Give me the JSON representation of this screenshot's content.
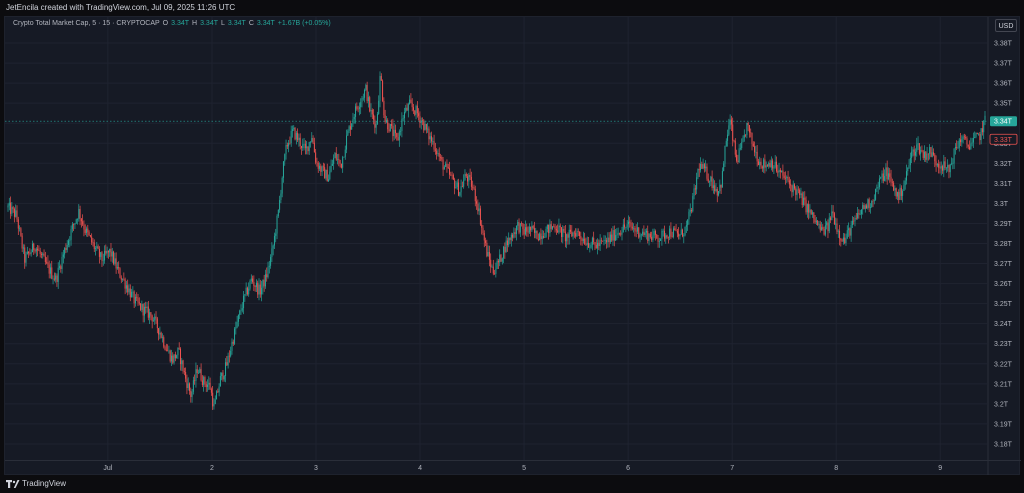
{
  "header": {
    "credit": "JetEncila created with TradingView.com, Jul 09, 2025 11:26 UTC"
  },
  "legend": {
    "symbol": "Crypto Total Market Cap, 5 · 15 · CRYPTOCAP",
    "o_label": "O",
    "o_value": "3.34T",
    "h_label": "H",
    "h_value": "3.34T",
    "l_label": "L",
    "l_value": "3.34T",
    "c_label": "C",
    "c_value": "3.34T",
    "change": "+1.67B (+0.05%)"
  },
  "currency_button": "USD",
  "footer": {
    "brand": "TradingView"
  },
  "colors": {
    "background": "#161a25",
    "up": "#26a69a",
    "down": "#ef5350",
    "grid": "#1f2330",
    "axis_text": "#b2b5be"
  },
  "chart_data": {
    "type": "candlestick",
    "title": "Crypto Total Market Cap",
    "interval": "15",
    "ylim": [
      3.172,
      3.386
    ],
    "y_ticks": [
      "3.38T",
      "3.37T",
      "3.36T",
      "3.35T",
      "3.34T",
      "3.33T",
      "3.32T",
      "3.31T",
      "3.3T",
      "3.29T",
      "3.28T",
      "3.27T",
      "3.26T",
      "3.25T",
      "3.24T",
      "3.23T",
      "3.22T",
      "3.21T",
      "3.2T",
      "3.19T",
      "3.18T"
    ],
    "y_tick_values": [
      3.38,
      3.37,
      3.36,
      3.35,
      3.34,
      3.33,
      3.32,
      3.31,
      3.3,
      3.29,
      3.28,
      3.27,
      3.26,
      3.25,
      3.24,
      3.23,
      3.22,
      3.21,
      3.2,
      3.19,
      3.18
    ],
    "x_ticks": [
      "Jul",
      "2",
      "3",
      "4",
      "5",
      "6",
      "7",
      "8",
      "9"
    ],
    "x_tick_days": [
      1,
      2,
      3,
      4,
      5,
      6,
      7,
      8,
      9
    ],
    "x_range_days": [
      0.04,
      9.43
    ],
    "last_price_label": "3.34T",
    "last_price": 3.341,
    "secondary_price_label": "3.33T",
    "secondary_price": 3.332,
    "close_path": [
      [
        0.04,
        3.298
      ],
      [
        0.12,
        3.294
      ],
      [
        0.2,
        3.272
      ],
      [
        0.3,
        3.279
      ],
      [
        0.42,
        3.268
      ],
      [
        0.5,
        3.262
      ],
      [
        0.58,
        3.276
      ],
      [
        0.66,
        3.288
      ],
      [
        0.72,
        3.296
      ],
      [
        0.78,
        3.287
      ],
      [
        0.86,
        3.279
      ],
      [
        0.94,
        3.272
      ],
      [
        1.02,
        3.276
      ],
      [
        1.1,
        3.266
      ],
      [
        1.18,
        3.259
      ],
      [
        1.26,
        3.251
      ],
      [
        1.34,
        3.247
      ],
      [
        1.42,
        3.244
      ],
      [
        1.5,
        3.236
      ],
      [
        1.56,
        3.228
      ],
      [
        1.62,
        3.222
      ],
      [
        1.68,
        3.226
      ],
      [
        1.74,
        3.214
      ],
      [
        1.8,
        3.204
      ],
      [
        1.86,
        3.218
      ],
      [
        1.92,
        3.211
      ],
      [
        1.98,
        3.209
      ],
      [
        2.02,
        3.198
      ],
      [
        2.08,
        3.212
      ],
      [
        2.14,
        3.219
      ],
      [
        2.22,
        3.236
      ],
      [
        2.3,
        3.251
      ],
      [
        2.38,
        3.262
      ],
      [
        2.46,
        3.256
      ],
      [
        2.52,
        3.263
      ],
      [
        2.58,
        3.276
      ],
      [
        2.64,
        3.296
      ],
      [
        2.68,
        3.316
      ],
      [
        2.72,
        3.329
      ],
      [
        2.78,
        3.336
      ],
      [
        2.84,
        3.331
      ],
      [
        2.9,
        3.326
      ],
      [
        2.96,
        3.334
      ],
      [
        3.0,
        3.321
      ],
      [
        3.06,
        3.316
      ],
      [
        3.12,
        3.313
      ],
      [
        3.18,
        3.324
      ],
      [
        3.24,
        3.319
      ],
      [
        3.3,
        3.334
      ],
      [
        3.36,
        3.344
      ],
      [
        3.42,
        3.351
      ],
      [
        3.48,
        3.357
      ],
      [
        3.52,
        3.346
      ],
      [
        3.58,
        3.339
      ],
      [
        3.62,
        3.365
      ],
      [
        3.66,
        3.342
      ],
      [
        3.72,
        3.337
      ],
      [
        3.78,
        3.331
      ],
      [
        3.84,
        3.344
      ],
      [
        3.9,
        3.349
      ],
      [
        3.96,
        3.346
      ],
      [
        4.02,
        3.341
      ],
      [
        4.08,
        3.334
      ],
      [
        4.14,
        3.329
      ],
      [
        4.2,
        3.321
      ],
      [
        4.26,
        3.316
      ],
      [
        4.32,
        3.311
      ],
      [
        4.38,
        3.306
      ],
      [
        4.44,
        3.314
      ],
      [
        4.5,
        3.309
      ],
      [
        4.56,
        3.298
      ],
      [
        4.6,
        3.286
      ],
      [
        4.64,
        3.276
      ],
      [
        4.7,
        3.266
      ],
      [
        4.76,
        3.271
      ],
      [
        4.82,
        3.279
      ],
      [
        4.88,
        3.284
      ],
      [
        4.94,
        3.289
      ],
      [
        5.0,
        3.286
      ],
      [
        5.06,
        3.287
      ],
      [
        5.12,
        3.284
      ],
      [
        5.2,
        3.286
      ],
      [
        5.3,
        3.289
      ],
      [
        5.4,
        3.283
      ],
      [
        5.5,
        3.286
      ],
      [
        5.6,
        3.281
      ],
      [
        5.7,
        3.279
      ],
      [
        5.8,
        3.281
      ],
      [
        5.9,
        3.286
      ],
      [
        6.0,
        3.289
      ],
      [
        6.1,
        3.286
      ],
      [
        6.2,
        3.284
      ],
      [
        6.3,
        3.283
      ],
      [
        6.4,
        3.286
      ],
      [
        6.5,
        3.284
      ],
      [
        6.56,
        3.288
      ],
      [
        6.6,
        3.296
      ],
      [
        6.64,
        3.306
      ],
      [
        6.68,
        3.319
      ],
      [
        6.74,
        3.316
      ],
      [
        6.8,
        3.311
      ],
      [
        6.86,
        3.306
      ],
      [
        6.9,
        3.311
      ],
      [
        6.94,
        3.331
      ],
      [
        6.98,
        3.341
      ],
      [
        7.04,
        3.321
      ],
      [
        7.1,
        3.329
      ],
      [
        7.14,
        3.339
      ],
      [
        7.2,
        3.329
      ],
      [
        7.26,
        3.321
      ],
      [
        7.32,
        3.319
      ],
      [
        7.38,
        3.321
      ],
      [
        7.44,
        3.316
      ],
      [
        7.5,
        3.313
      ],
      [
        7.56,
        3.309
      ],
      [
        7.62,
        3.306
      ],
      [
        7.68,
        3.301
      ],
      [
        7.74,
        3.296
      ],
      [
        7.8,
        3.291
      ],
      [
        7.86,
        3.286
      ],
      [
        7.92,
        3.288
      ],
      [
        7.96,
        3.296
      ],
      [
        8.02,
        3.286
      ],
      [
        8.08,
        3.281
      ],
      [
        8.12,
        3.286
      ],
      [
        8.18,
        3.291
      ],
      [
        8.26,
        3.298
      ],
      [
        8.34,
        3.301
      ],
      [
        8.42,
        3.311
      ],
      [
        8.48,
        3.316
      ],
      [
        8.54,
        3.309
      ],
      [
        8.6,
        3.303
      ],
      [
        8.66,
        3.311
      ],
      [
        8.72,
        3.324
      ],
      [
        8.78,
        3.329
      ],
      [
        8.84,
        3.324
      ],
      [
        8.9,
        3.326
      ],
      [
        8.96,
        3.321
      ],
      [
        9.02,
        3.319
      ],
      [
        9.08,
        3.316
      ],
      [
        9.14,
        3.326
      ],
      [
        9.2,
        3.333
      ],
      [
        9.26,
        3.329
      ],
      [
        9.32,
        3.331
      ],
      [
        9.38,
        3.334
      ],
      [
        9.43,
        3.341
      ]
    ]
  }
}
